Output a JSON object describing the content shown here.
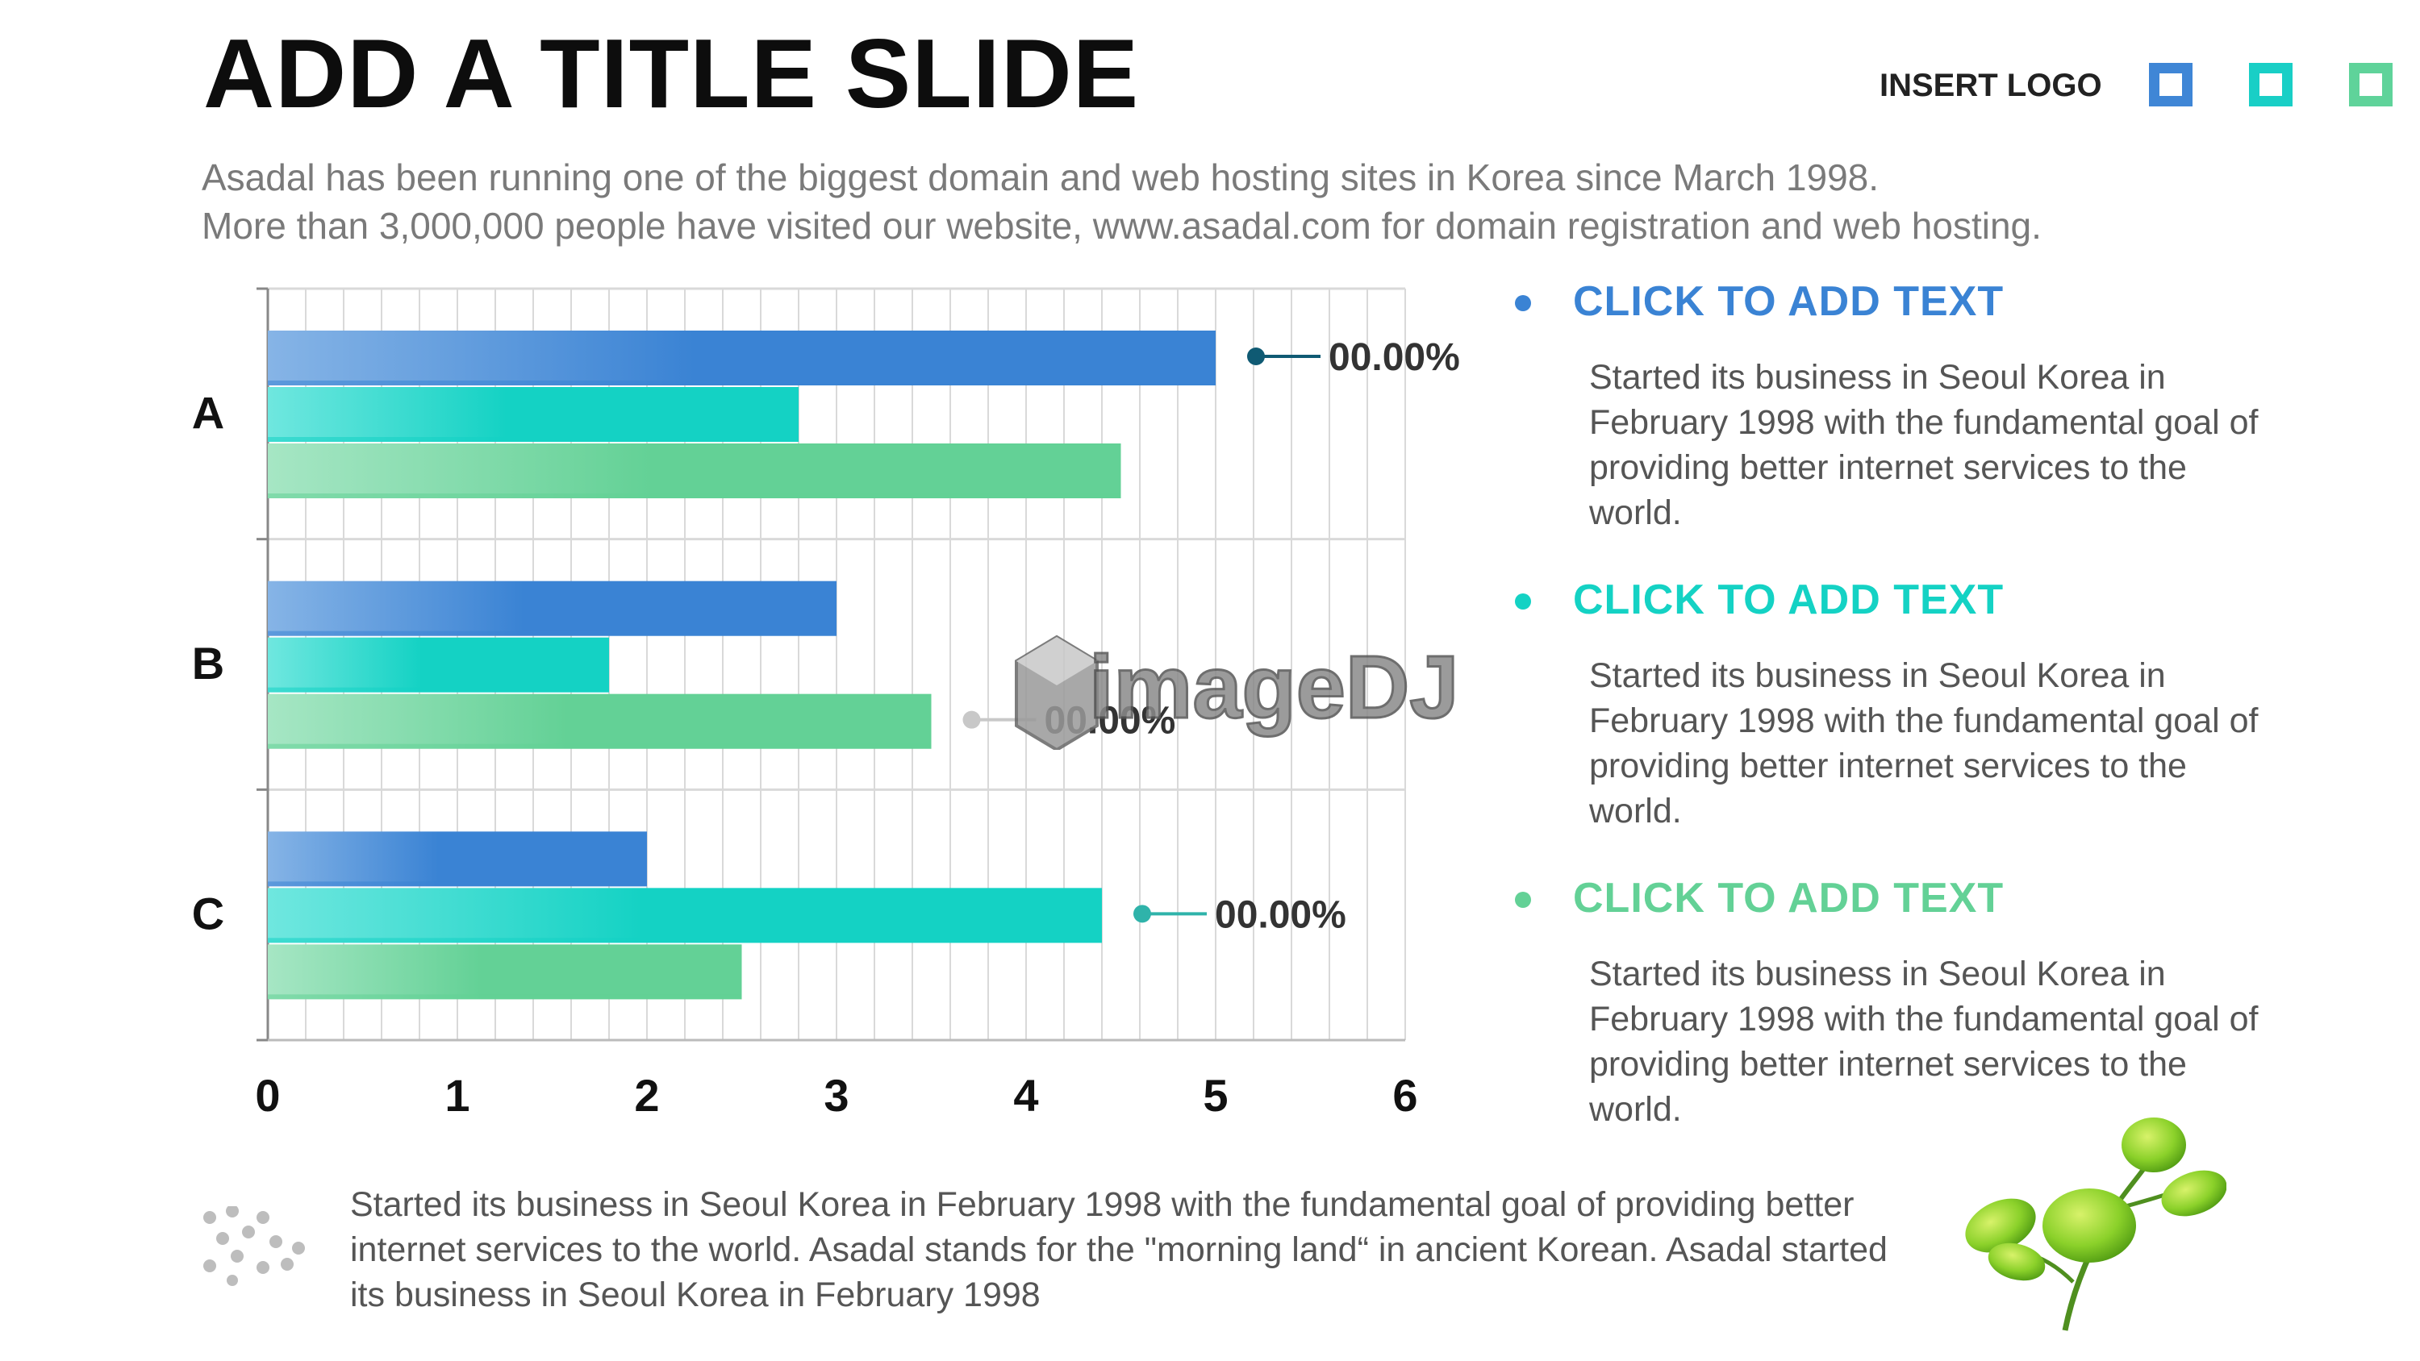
{
  "slide": {
    "title": "ADD A TITLE SLIDE",
    "subtitle_line1": "Asadal has been running one of the biggest domain and web hosting sites in Korea since March 1998.",
    "subtitle_line2": "More than 3,000,000 people have visited our website,  www.asadal.com for domain registration and web hosting."
  },
  "logo": {
    "label": "INSERT LOGO",
    "squares": [
      "#3f86d6",
      "#19cfc6",
      "#5fd39a"
    ]
  },
  "colors": {
    "blue": "#3a83d4",
    "cyan": "#14d2c4",
    "green": "#63d196"
  },
  "chart_data": {
    "type": "bar",
    "orientation": "horizontal",
    "categories": [
      "A",
      "B",
      "C"
    ],
    "series": [
      {
        "values": [
          5,
          3,
          2
        ],
        "color": "#3a83d4"
      },
      {
        "values": [
          2.8,
          1.8,
          4.4
        ],
        "color": "#14d2c4"
      },
      {
        "values": [
          4.5,
          3.5,
          2.5
        ],
        "color": "#63d196"
      }
    ],
    "xlim": [
      0,
      6
    ],
    "xticks": [
      "0",
      "1",
      "2",
      "3",
      "4",
      "5",
      "6"
    ],
    "grid": true,
    "callouts": [
      {
        "category": "A",
        "series": 0,
        "label": "00.00%"
      },
      {
        "category": "B",
        "series": 2,
        "label": "00.00%"
      },
      {
        "category": "C",
        "series": 1,
        "label": "00.00%"
      }
    ]
  },
  "side_items": [
    {
      "heading": "CLICK TO ADD TEXT",
      "color": "#3a83d4",
      "body": "Started its business in Seoul Korea  in February 1998 with the fundamental goal of providing better internet services to the world."
    },
    {
      "heading": "CLICK TO ADD TEXT",
      "color": "#14d2c4",
      "body": "Started its business in Seoul Korea  in February 1998 with the fundamental goal of providing better internet services to the world."
    },
    {
      "heading": "CLICK TO ADD TEXT",
      "color": "#63d196",
      "body": "Started its business in Seoul Korea  in February 1998 with the fundamental goal of providing better internet services to the world."
    }
  ],
  "footer": {
    "text": "Started its business in Seoul Korea  in February 1998 with the fundamental goal of providing better internet services to the world. Asadal stands for the \"morning land“ in ancient Korean. Asadal started its business in Seoul Korea  in February 1998"
  },
  "watermark": {
    "text": "imageDJ"
  }
}
